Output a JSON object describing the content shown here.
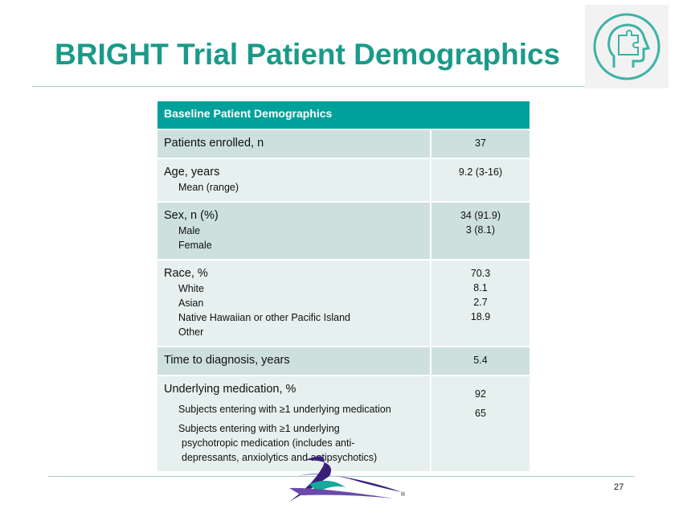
{
  "header": {
    "title": "BRIGHT Trial Patient Demographics"
  },
  "table": {
    "title": "Baseline Patient Demographics",
    "rows": [
      {
        "label": "Patients enrolled, n",
        "value": "37"
      },
      {
        "label": "Age, years",
        "items": [
          {
            "label": "Mean (range)",
            "value": "9.2 (3-16)"
          }
        ]
      },
      {
        "label": "Sex, n (%)",
        "items": [
          {
            "label": "Male",
            "value": "34 (91.9)"
          },
          {
            "label": "Female",
            "value": "3 (8.1)"
          }
        ]
      },
      {
        "label": "Race, %",
        "items": [
          {
            "label": "White",
            "value": "70.3"
          },
          {
            "label": "Asian",
            "value": "8.1"
          },
          {
            "label": "Native Hawaiian or other Pacific Island",
            "value": "2.7"
          },
          {
            "label": "Other",
            "value": "18.9"
          }
        ]
      },
      {
        "label": "Time to diagnosis, years",
        "value": "5.4"
      },
      {
        "label": "Underlying medication, %",
        "items": [
          {
            "label_lines": [
              "Subjects entering with ≥1 underlying medication"
            ],
            "value": "92"
          },
          {
            "label_lines": [
              "Subjects entering with ≥1 underlying",
              "psychotropic medication (includes anti-",
              "depressants, anxiolytics and antipsychotics)"
            ],
            "value": "65"
          }
        ]
      }
    ]
  },
  "footer": {
    "page_number": "27",
    "registered_mark": "®"
  }
}
